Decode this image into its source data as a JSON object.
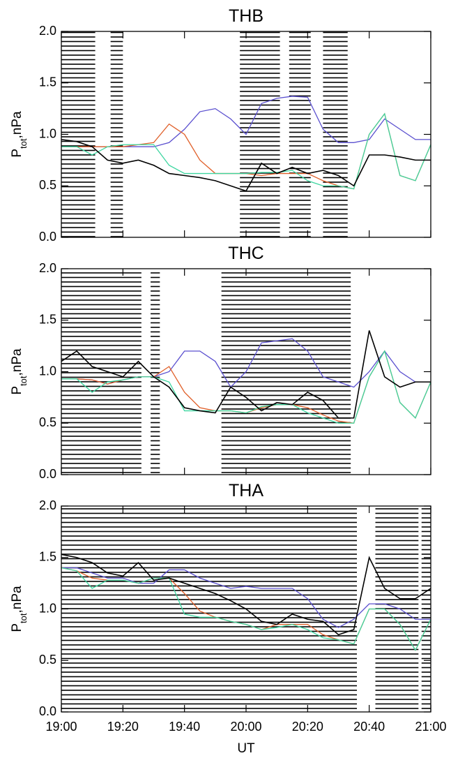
{
  "chart_data": [
    {
      "type": "line",
      "title": "THB",
      "ylabel": {
        "main": "P",
        "sub": "tot",
        "rest": ",nPa"
      },
      "x": [
        "19:00",
        "19:05",
        "19:10",
        "19:15",
        "19:20",
        "19:25",
        "19:30",
        "19:35",
        "19:40",
        "19:45",
        "19:50",
        "19:55",
        "20:00",
        "20:05",
        "20:10",
        "20:15",
        "20:20",
        "20:25",
        "20:30",
        "20:35",
        "20:40",
        "20:45",
        "20:50",
        "20:55",
        "21:00"
      ],
      "xlim": [
        "19:00",
        "21:00"
      ],
      "ylim": [
        0,
        2
      ],
      "yticks": [
        {
          "value": 0,
          "label": "0.0"
        },
        {
          "value": 0.5,
          "label": "0.5"
        },
        {
          "value": 1,
          "label": "1.0"
        },
        {
          "value": 1.5,
          "label": "1.5"
        },
        {
          "value": 2,
          "label": "2.0"
        }
      ],
      "hatched": [
        [
          "19:00",
          "19:11"
        ],
        [
          "19:16",
          "19:20"
        ],
        [
          "19:58",
          "20:11"
        ],
        [
          "20:14",
          "20:21"
        ],
        [
          "20:25",
          "20:33"
        ]
      ],
      "series": [
        {
          "color": "#5a4fcf",
          "values": [
            0.88,
            0.88,
            0.88,
            0.88,
            0.88,
            0.88,
            0.88,
            0.92,
            1.05,
            1.22,
            1.25,
            1.15,
            1.0,
            1.3,
            1.35,
            1.37,
            1.36,
            1.05,
            0.92,
            0.92,
            0.95,
            1.15,
            1.05,
            0.95,
            0.95
          ]
        },
        {
          "color": "#e0602a",
          "values": [
            0.88,
            0.88,
            0.88,
            0.88,
            0.88,
            0.9,
            0.92,
            1.1,
            1.0,
            0.75,
            0.62,
            0.62,
            0.62,
            0.6,
            0.62,
            0.62,
            0.62,
            0.55,
            0.5,
            0.47,
            1.0,
            1.2,
            0.6,
            0.55,
            0.9
          ]
        },
        {
          "color": "#3dd6a0",
          "values": [
            0.88,
            0.88,
            0.8,
            0.88,
            0.9,
            0.9,
            0.9,
            0.7,
            0.62,
            0.62,
            0.62,
            0.62,
            0.62,
            0.63,
            0.63,
            0.65,
            0.55,
            0.5,
            0.5,
            0.47,
            1.0,
            1.2,
            0.6,
            0.55,
            0.9
          ]
        },
        {
          "color": "#000000",
          "values": [
            0.95,
            0.93,
            0.88,
            0.75,
            0.72,
            0.75,
            0.7,
            0.62,
            0.6,
            0.58,
            0.55,
            0.5,
            0.45,
            0.72,
            0.62,
            0.68,
            0.62,
            0.65,
            0.6,
            0.5,
            0.8,
            0.8,
            0.78,
            0.75,
            0.75
          ]
        }
      ]
    },
    {
      "type": "line",
      "title": "THC",
      "ylabel": {
        "main": "P",
        "sub": "tot",
        "rest": ",nPa"
      },
      "x": [
        "19:00",
        "19:05",
        "19:10",
        "19:15",
        "19:20",
        "19:25",
        "19:30",
        "19:35",
        "19:40",
        "19:45",
        "19:50",
        "19:55",
        "20:00",
        "20:05",
        "20:10",
        "20:15",
        "20:20",
        "20:25",
        "20:30",
        "20:35",
        "20:40",
        "20:45",
        "20:50",
        "20:55",
        "21:00"
      ],
      "xlim": [
        "19:00",
        "21:00"
      ],
      "ylim": [
        0,
        2
      ],
      "yticks": [
        {
          "value": 0,
          "label": "0.0"
        },
        {
          "value": 0.5,
          "label": "0.5"
        },
        {
          "value": 1,
          "label": "1.0"
        },
        {
          "value": 1.5,
          "label": "1.5"
        },
        {
          "value": 2,
          "label": "2.0"
        }
      ],
      "hatched": [
        [
          "19:00",
          "19:26"
        ],
        [
          "19:29",
          "19:32"
        ],
        [
          "19:52",
          "20:34"
        ]
      ],
      "series": [
        {
          "color": "#5a4fcf",
          "values": [
            0.93,
            0.93,
            0.92,
            0.88,
            0.92,
            0.95,
            0.95,
            1.0,
            1.2,
            1.2,
            1.1,
            0.85,
            1.0,
            1.28,
            1.3,
            1.32,
            1.2,
            0.95,
            0.9,
            0.85,
            1.0,
            1.2,
            1.0,
            0.9,
            0.9
          ]
        },
        {
          "color": "#e0602a",
          "values": [
            0.93,
            0.93,
            0.92,
            0.88,
            0.92,
            0.95,
            0.95,
            1.05,
            0.8,
            0.65,
            0.62,
            0.62,
            0.6,
            0.65,
            0.68,
            0.68,
            0.65,
            0.58,
            0.52,
            0.5,
            0.95,
            1.2,
            0.7,
            0.55,
            0.9
          ]
        },
        {
          "color": "#3dd6a0",
          "values": [
            0.93,
            0.93,
            0.8,
            0.9,
            0.92,
            0.95,
            0.95,
            0.9,
            0.62,
            0.62,
            0.62,
            0.62,
            0.6,
            0.66,
            0.68,
            0.68,
            0.6,
            0.55,
            0.5,
            0.5,
            0.95,
            1.2,
            0.7,
            0.55,
            0.9
          ]
        },
        {
          "color": "#000000",
          "values": [
            1.1,
            1.2,
            1.05,
            1.0,
            0.95,
            1.1,
            0.95,
            0.85,
            0.65,
            0.62,
            0.6,
            0.85,
            0.75,
            0.62,
            0.7,
            0.68,
            0.8,
            0.72,
            0.55,
            0.55,
            1.4,
            0.95,
            0.85,
            0.9,
            0.9
          ]
        }
      ]
    },
    {
      "type": "line",
      "title": "THA",
      "ylabel": {
        "main": "P",
        "sub": "tot",
        "rest": ",nPa"
      },
      "xlabel": "UT",
      "x": [
        "19:00",
        "19:05",
        "19:10",
        "19:15",
        "19:20",
        "19:25",
        "19:30",
        "19:35",
        "19:40",
        "19:45",
        "19:50",
        "19:55",
        "20:00",
        "20:05",
        "20:10",
        "20:15",
        "20:20",
        "20:25",
        "20:30",
        "20:35",
        "20:40",
        "20:45",
        "20:50",
        "20:55",
        "21:00"
      ],
      "xlim": [
        "19:00",
        "21:00"
      ],
      "xticks": [
        "19:00",
        "19:20",
        "19:40",
        "20:00",
        "20:20",
        "20:40",
        "21:00"
      ],
      "ylim": [
        0,
        2
      ],
      "yticks": [
        {
          "value": 0,
          "label": "0.0"
        },
        {
          "value": 0.5,
          "label": "0.5"
        },
        {
          "value": 1,
          "label": "1.0"
        },
        {
          "value": 1.5,
          "label": "1.5"
        },
        {
          "value": 2,
          "label": "2.0"
        }
      ],
      "hatched": [
        [
          "19:00",
          "20:36"
        ],
        [
          "20:42",
          "20:56"
        ],
        [
          "20:57",
          "21:00"
        ]
      ],
      "series": [
        {
          "color": "#5a4fcf",
          "values": [
            1.4,
            1.4,
            1.35,
            1.3,
            1.3,
            1.25,
            1.25,
            1.38,
            1.38,
            1.3,
            1.25,
            1.2,
            1.22,
            1.2,
            1.2,
            1.2,
            1.1,
            0.9,
            0.82,
            0.9,
            1.05,
            1.05,
            1.0,
            0.9,
            0.9
          ]
        },
        {
          "color": "#e0602a",
          "values": [
            1.4,
            1.37,
            1.3,
            1.28,
            1.28,
            1.25,
            1.3,
            1.3,
            1.15,
            0.98,
            0.92,
            0.88,
            0.85,
            0.8,
            0.85,
            0.85,
            0.85,
            0.75,
            0.7,
            0.66,
            1.0,
            1.0,
            0.85,
            0.6,
            0.9
          ]
        },
        {
          "color": "#3dd6a0",
          "values": [
            1.4,
            1.37,
            1.2,
            1.28,
            1.28,
            1.25,
            1.3,
            1.3,
            0.95,
            0.92,
            0.92,
            0.88,
            0.85,
            0.8,
            0.82,
            0.85,
            0.8,
            0.72,
            0.7,
            0.66,
            1.0,
            1.0,
            0.85,
            0.6,
            0.9
          ]
        },
        {
          "color": "#000000",
          "values": [
            1.53,
            1.5,
            1.45,
            1.35,
            1.32,
            1.45,
            1.28,
            1.3,
            1.25,
            1.2,
            1.15,
            1.08,
            1.0,
            0.88,
            0.85,
            0.95,
            0.9,
            0.88,
            0.75,
            0.8,
            1.5,
            1.2,
            1.1,
            1.1,
            1.2
          ]
        }
      ]
    }
  ]
}
